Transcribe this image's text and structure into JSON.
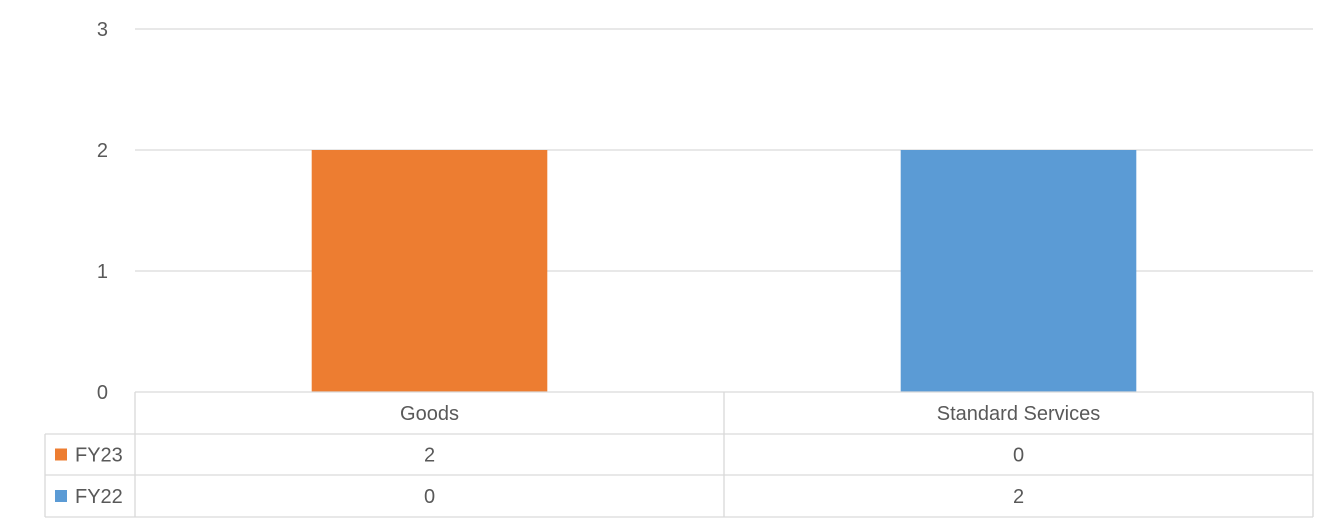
{
  "chart_data": {
    "type": "bar",
    "stacked": true,
    "categories": [
      "Goods",
      "Standard Services"
    ],
    "series": [
      {
        "name": "FY23",
        "values": [
          2,
          0
        ],
        "color": "#ED7D31"
      },
      {
        "name": "FY22",
        "values": [
          0,
          2
        ],
        "color": "#5B9BD5"
      }
    ],
    "ylim": [
      0,
      3
    ],
    "yticks": [
      0,
      1,
      2,
      3
    ],
    "grid": true,
    "legend": "data-table"
  }
}
